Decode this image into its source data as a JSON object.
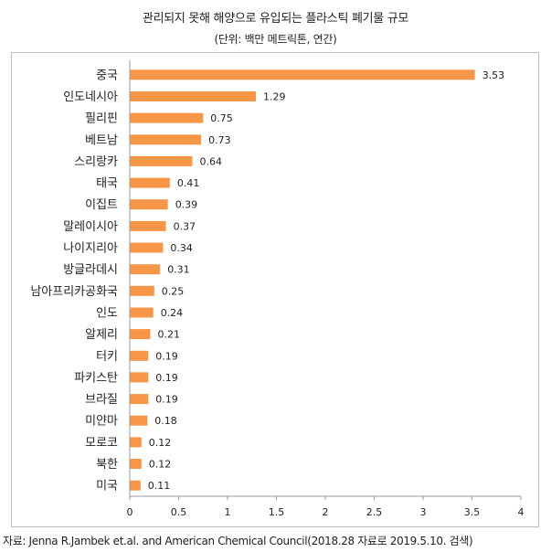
{
  "chart_data": {
    "type": "bar",
    "orientation": "horizontal",
    "title": "관리되지 못해 해양으로 유입되는 플라스틱 폐기물 규모",
    "subtitle": "(단위: 백만 메트릭톤, 연간)",
    "categories": [
      "중국",
      "인도네시아",
      "필리핀",
      "베트남",
      "스리랑카",
      "태국",
      "이집트",
      "말레이시아",
      "나이지리아",
      "방글라데시",
      "남아프리카공화국",
      "인도",
      "알제리",
      "터키",
      "파키스탄",
      "브라질",
      "미얀마",
      "모로코",
      "북한",
      "미국"
    ],
    "values": [
      3.53,
      1.29,
      0.75,
      0.73,
      0.64,
      0.41,
      0.39,
      0.37,
      0.34,
      0.31,
      0.25,
      0.24,
      0.21,
      0.19,
      0.19,
      0.19,
      0.18,
      0.12,
      0.12,
      0.11
    ],
    "value_labels": [
      "3.53",
      "1.29",
      "0.75",
      "0.73",
      "0.64",
      "0.41",
      "0.39",
      "0.37",
      "0.34",
      "0.31",
      "0.25",
      "0.24",
      "0.21",
      "0.19",
      "0.19",
      "0.19",
      "0.18",
      "0.12",
      "0.12",
      "0.11"
    ],
    "xlim": [
      0,
      4
    ],
    "xticks": [
      "0",
      "0.5",
      "1",
      "1.5",
      "2",
      "2.5",
      "3",
      "3.5",
      "4"
    ],
    "grid": false,
    "legend": "none",
    "bar_color": "#f79646"
  },
  "source": "자료: Jenna R.Jambek et.al. and American Chemical Council(2018.28 자료로 2019.5.10. 검색)"
}
